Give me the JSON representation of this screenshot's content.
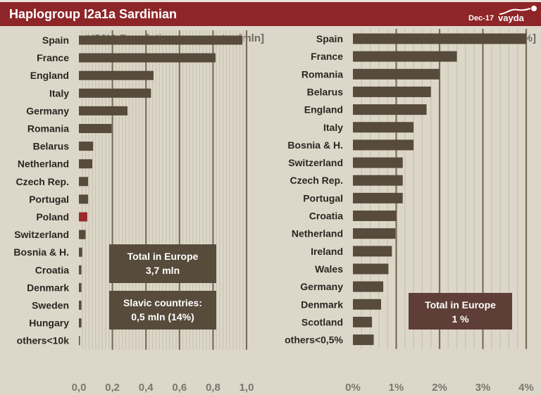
{
  "header": {
    "title": "Haplogroup I2a1a Sardinian",
    "date": "Dec-17",
    "brand": "vayda",
    "colors": {
      "band": "#8e2528",
      "background": "#dcd7c9",
      "bar": "#574b3b",
      "highlight": "#9b2a2a",
      "box_right": "#5e3e36"
    }
  },
  "chart_data": [
    {
      "type": "bar",
      "orientation": "horizontal",
      "title": "YDNA Population per country [mln]",
      "xlabel": "",
      "ylabel": "",
      "xlim": [
        0,
        1.0
      ],
      "xticks": [
        "0,0",
        "0,2",
        "0,4",
        "0,6",
        "0,8",
        "1,0"
      ],
      "grid": true,
      "categories": [
        "Spain",
        "France",
        "England",
        "Italy",
        "Germany",
        "Romania",
        "Belarus",
        "Netherland",
        "Czech Rep.",
        "Portugal",
        "Poland",
        "Switzerland",
        "Bosnia & H.",
        "Croatia",
        "Denmark",
        "Sweden",
        "Hungary",
        "others<10k"
      ],
      "values": [
        0.975,
        0.815,
        0.445,
        0.43,
        0.29,
        0.195,
        0.085,
        0.08,
        0.055,
        0.055,
        0.05,
        0.04,
        0.02,
        0.015,
        0.015,
        0.015,
        0.015,
        0.005
      ],
      "highlight": [
        "Poland"
      ],
      "annotations": [
        {
          "lines": [
            "Total in Europe",
            "3,7 mln"
          ]
        },
        {
          "lines": [
            "Slavic countries:",
            "0,5 mln (14%)"
          ]
        }
      ]
    },
    {
      "type": "bar",
      "orientation": "horizontal",
      "title": "YDNA Frequency per country [%]",
      "xlabel": "",
      "ylabel": "",
      "xlim": [
        0,
        4
      ],
      "xticks": [
        "0%",
        "1%",
        "2%",
        "3%",
        "4%"
      ],
      "grid": true,
      "categories": [
        "Spain",
        "France",
        "Romania",
        "Belarus",
        "England",
        "Italy",
        "Bosnia & H.",
        "Switzerland",
        "Czech Rep.",
        "Portugal",
        "Croatia",
        "Netherland",
        "Ireland",
        "Wales",
        "Germany",
        "Denmark",
        "Scotland",
        "others<0,5%"
      ],
      "values": [
        4.0,
        2.4,
        2.0,
        1.8,
        1.7,
        1.4,
        1.4,
        1.15,
        1.15,
        1.15,
        1.0,
        0.98,
        0.9,
        0.82,
        0.7,
        0.65,
        0.44,
        0.48
      ],
      "highlight": [],
      "annotations": [
        {
          "lines": [
            "Total in Europe",
            "1 %"
          ]
        }
      ]
    }
  ]
}
